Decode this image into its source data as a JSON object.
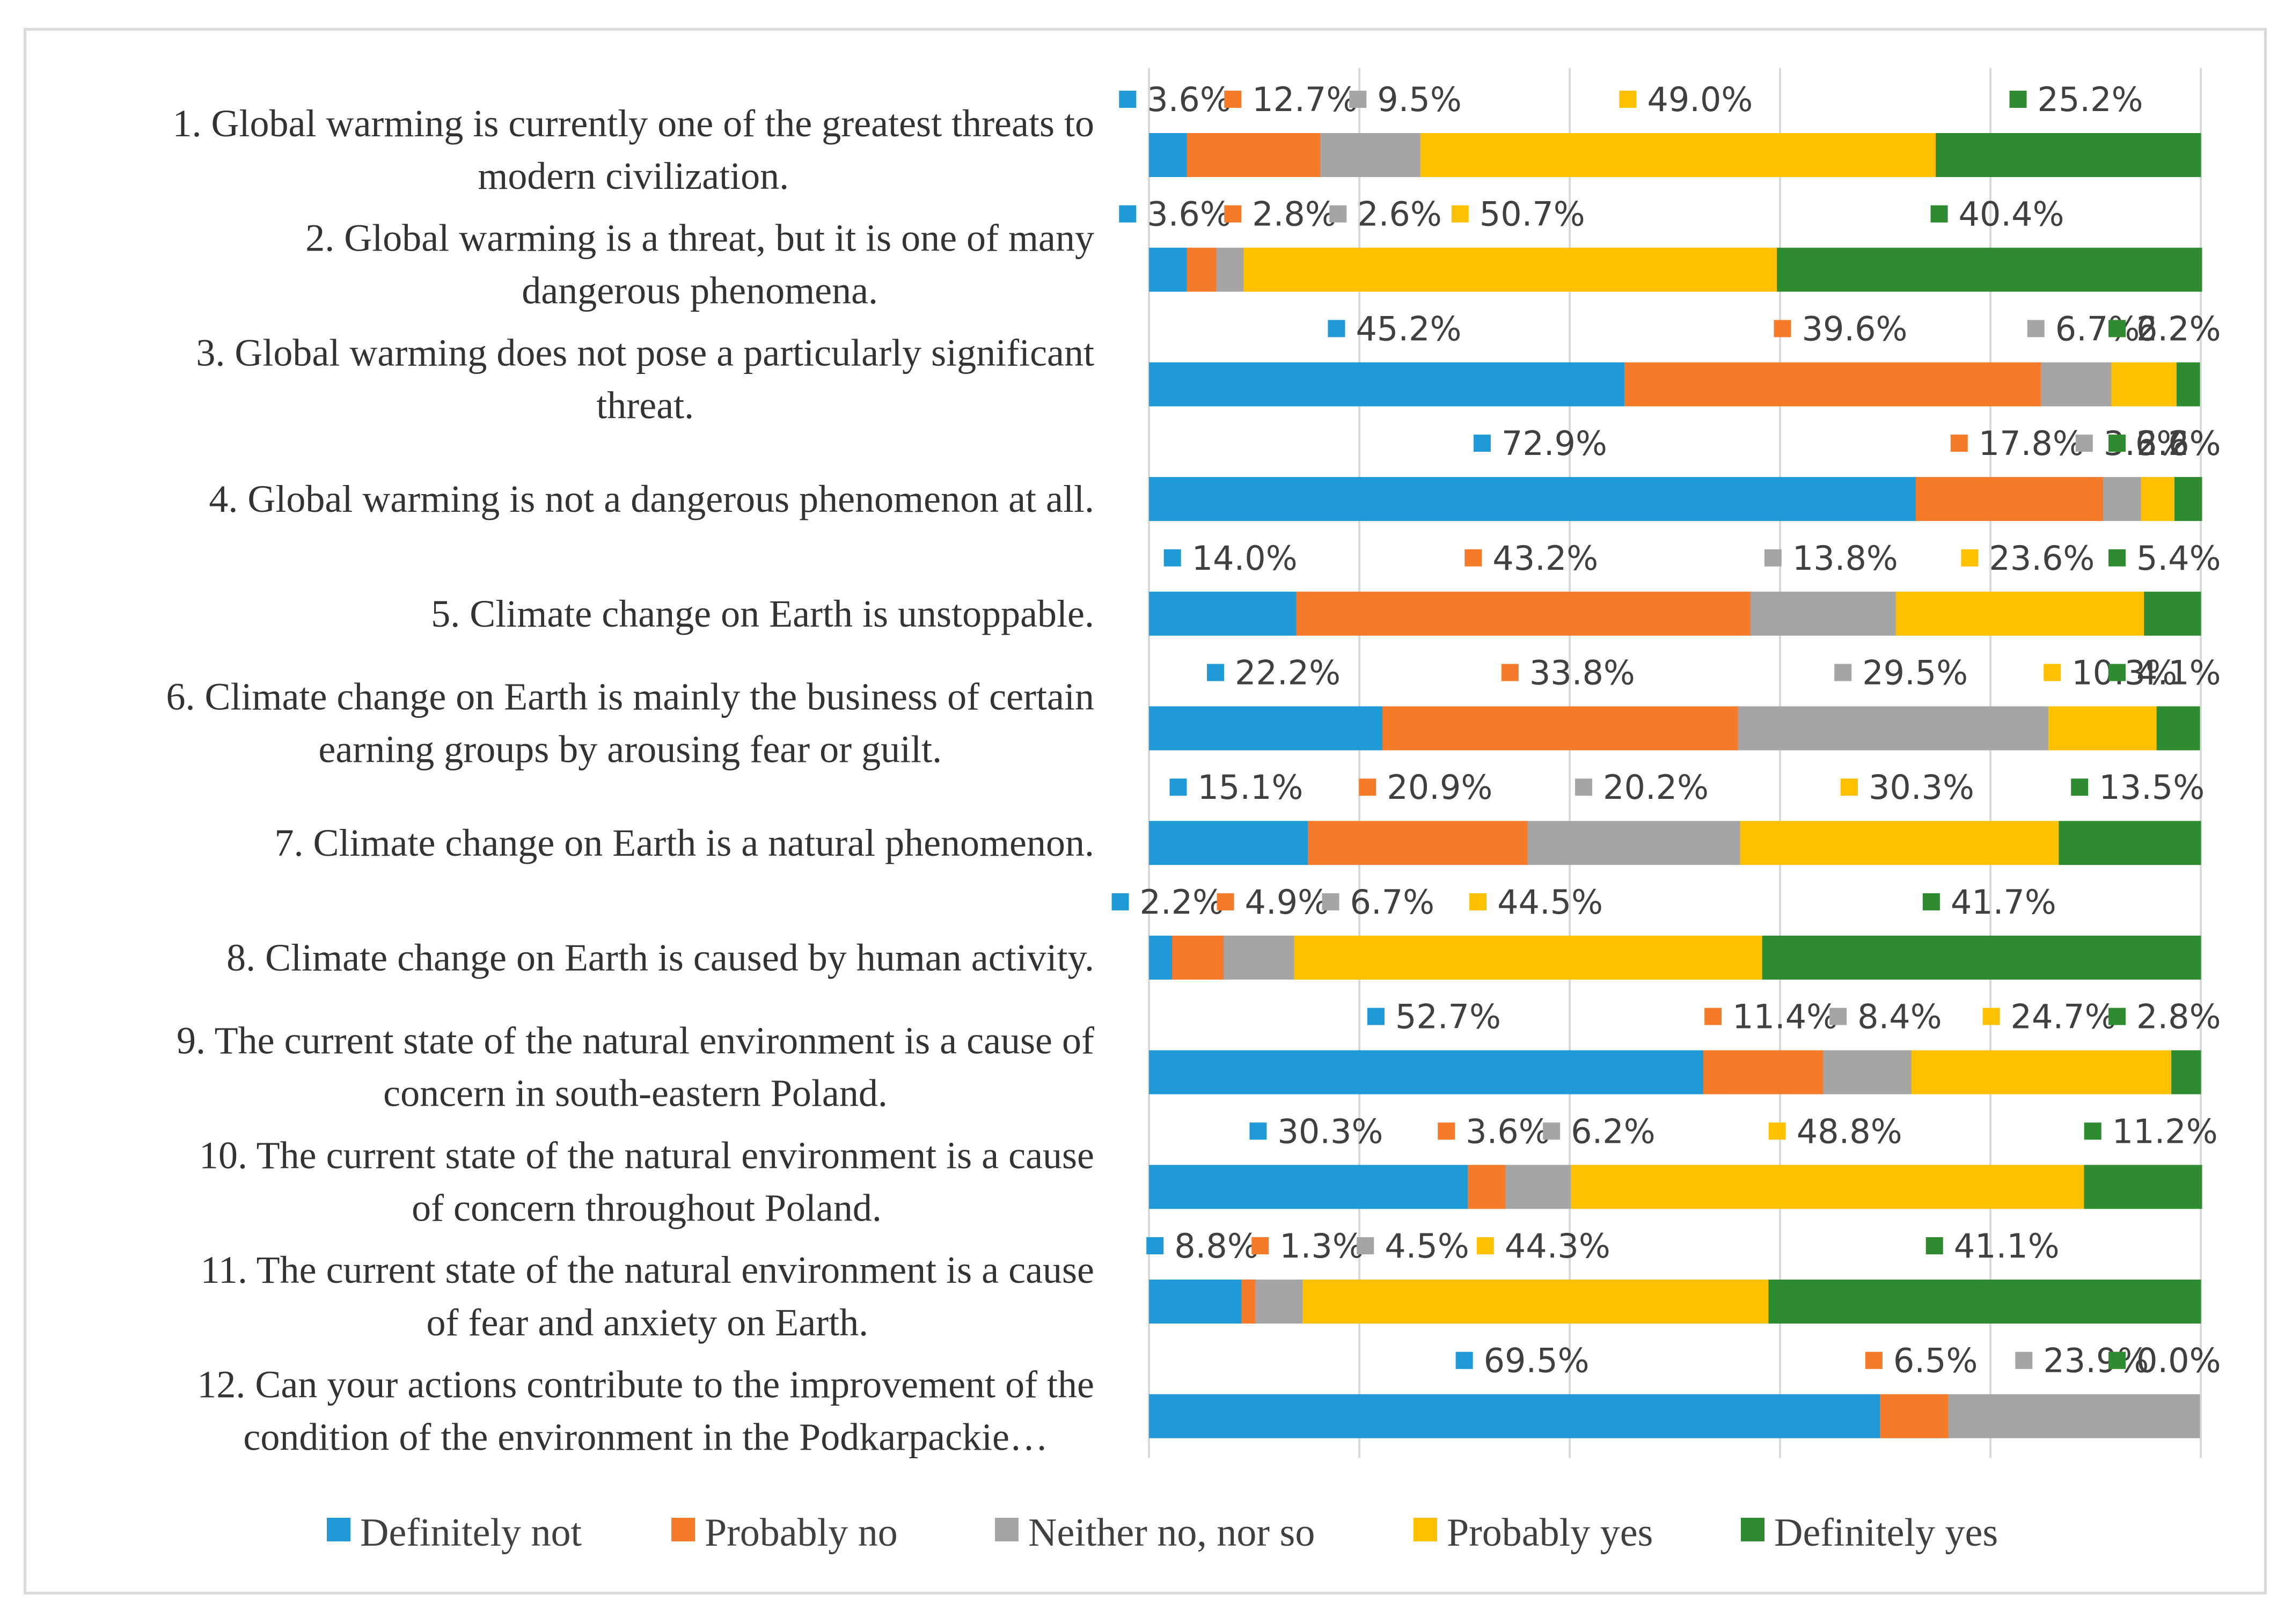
{
  "chart_data": {
    "type": "bar",
    "orientation": "horizontal",
    "stacked": "percent",
    "title": "",
    "xlabel": "",
    "ylabel": "",
    "xlim": [
      0,
      100
    ],
    "grid": true,
    "legend_position": "bottom",
    "categories": [
      [
        "1. Global warming is currently one of the greatest threats to",
        "modern civilization."
      ],
      [
        "2. Global warming is a threat, but it is one of many",
        "dangerous phenomena."
      ],
      [
        "3. Global warming does not pose a particularly significant",
        "threat."
      ],
      [
        "4. Global warming is not a dangerous phenomenon at all."
      ],
      [
        "5. Climate change on Earth is unstoppable."
      ],
      [
        "6. Climate change on Earth is mainly the business of certain",
        "earning groups by arousing fear or guilt."
      ],
      [
        "7. Climate change on Earth is a natural phenomenon."
      ],
      [
        "8. Climate change on Earth is caused by human activity."
      ],
      [
        "9. The current state of the natural environment is a cause of",
        "concern in south-eastern Poland."
      ],
      [
        "10. The current state of the natural environment is a cause",
        "of concern throughout Poland."
      ],
      [
        "11. The current state of the natural environment is a cause",
        "of fear and anxiety on Earth."
      ],
      [
        "12. Can your actions contribute to the improvement of the",
        "condition of the environment in the Podkarpackie…"
      ]
    ],
    "series": [
      {
        "name": "Definitely not",
        "color": "#1f9ad6",
        "values": [
          3.6,
          3.6,
          45.2,
          72.9,
          14.0,
          22.2,
          15.1,
          2.2,
          52.7,
          30.3,
          8.8,
          69.5
        ]
      },
      {
        "name": "Probably no",
        "color": "#f47b2a",
        "values": [
          12.7,
          2.8,
          39.6,
          17.8,
          43.2,
          33.8,
          20.9,
          4.9,
          11.4,
          3.6,
          1.3,
          6.5
        ]
      },
      {
        "name": "Neither no, nor so",
        "color": "#a5a5a5",
        "values": [
          9.5,
          2.6,
          6.7,
          3.6,
          13.8,
          29.5,
          20.2,
          6.7,
          8.4,
          6.2,
          4.5,
          23.9
        ]
      },
      {
        "name": "Probably yes",
        "color": "#ffc000",
        "values": [
          49.0,
          50.7,
          6.2,
          3.2,
          23.6,
          10.3,
          30.3,
          44.5,
          24.7,
          48.8,
          44.3,
          0.0
        ]
      },
      {
        "name": "Definitely yes",
        "color": "#2e8b30",
        "values": [
          25.2,
          40.4,
          2.2,
          2.6,
          5.4,
          4.1,
          13.5,
          41.7,
          2.8,
          11.2,
          41.1,
          0.0
        ]
      }
    ],
    "data_labels": [
      [
        "3.6%",
        "12.7%",
        "9.5%",
        "49.0%",
        "25.2%"
      ],
      [
        "3.6%",
        "2.8%",
        "2.6%",
        "50.7%",
        "40.4%"
      ],
      [
        "45.2%",
        "39.6%",
        "6.7%",
        "6.2%",
        "2.2%"
      ],
      [
        "72.9%",
        "17.8%",
        "3.6%",
        "3.2%",
        "2.6%"
      ],
      [
        "14.0%",
        "43.2%",
        "13.8%",
        "23.6%",
        "5.4%"
      ],
      [
        "22.2%",
        "33.8%",
        "29.5%",
        "10.3%",
        "4.1%"
      ],
      [
        "15.1%",
        "20.9%",
        "20.2%",
        "30.3%",
        "13.5%"
      ],
      [
        "2.2%",
        "4.9%",
        "6.7%",
        "44.5%",
        "41.7%"
      ],
      [
        "52.7%",
        "11.4%",
        "8.4%",
        "24.7%",
        "2.8%"
      ],
      [
        "30.3%",
        "3.6%",
        "6.2%",
        "48.8%",
        "11.2%"
      ],
      [
        "8.8%",
        "1.3%",
        "4.5%",
        "44.3%",
        "41.1%"
      ],
      [
        "69.5%",
        "6.5%",
        "23.9%",
        "0.0%",
        "0.0%"
      ]
    ]
  }
}
